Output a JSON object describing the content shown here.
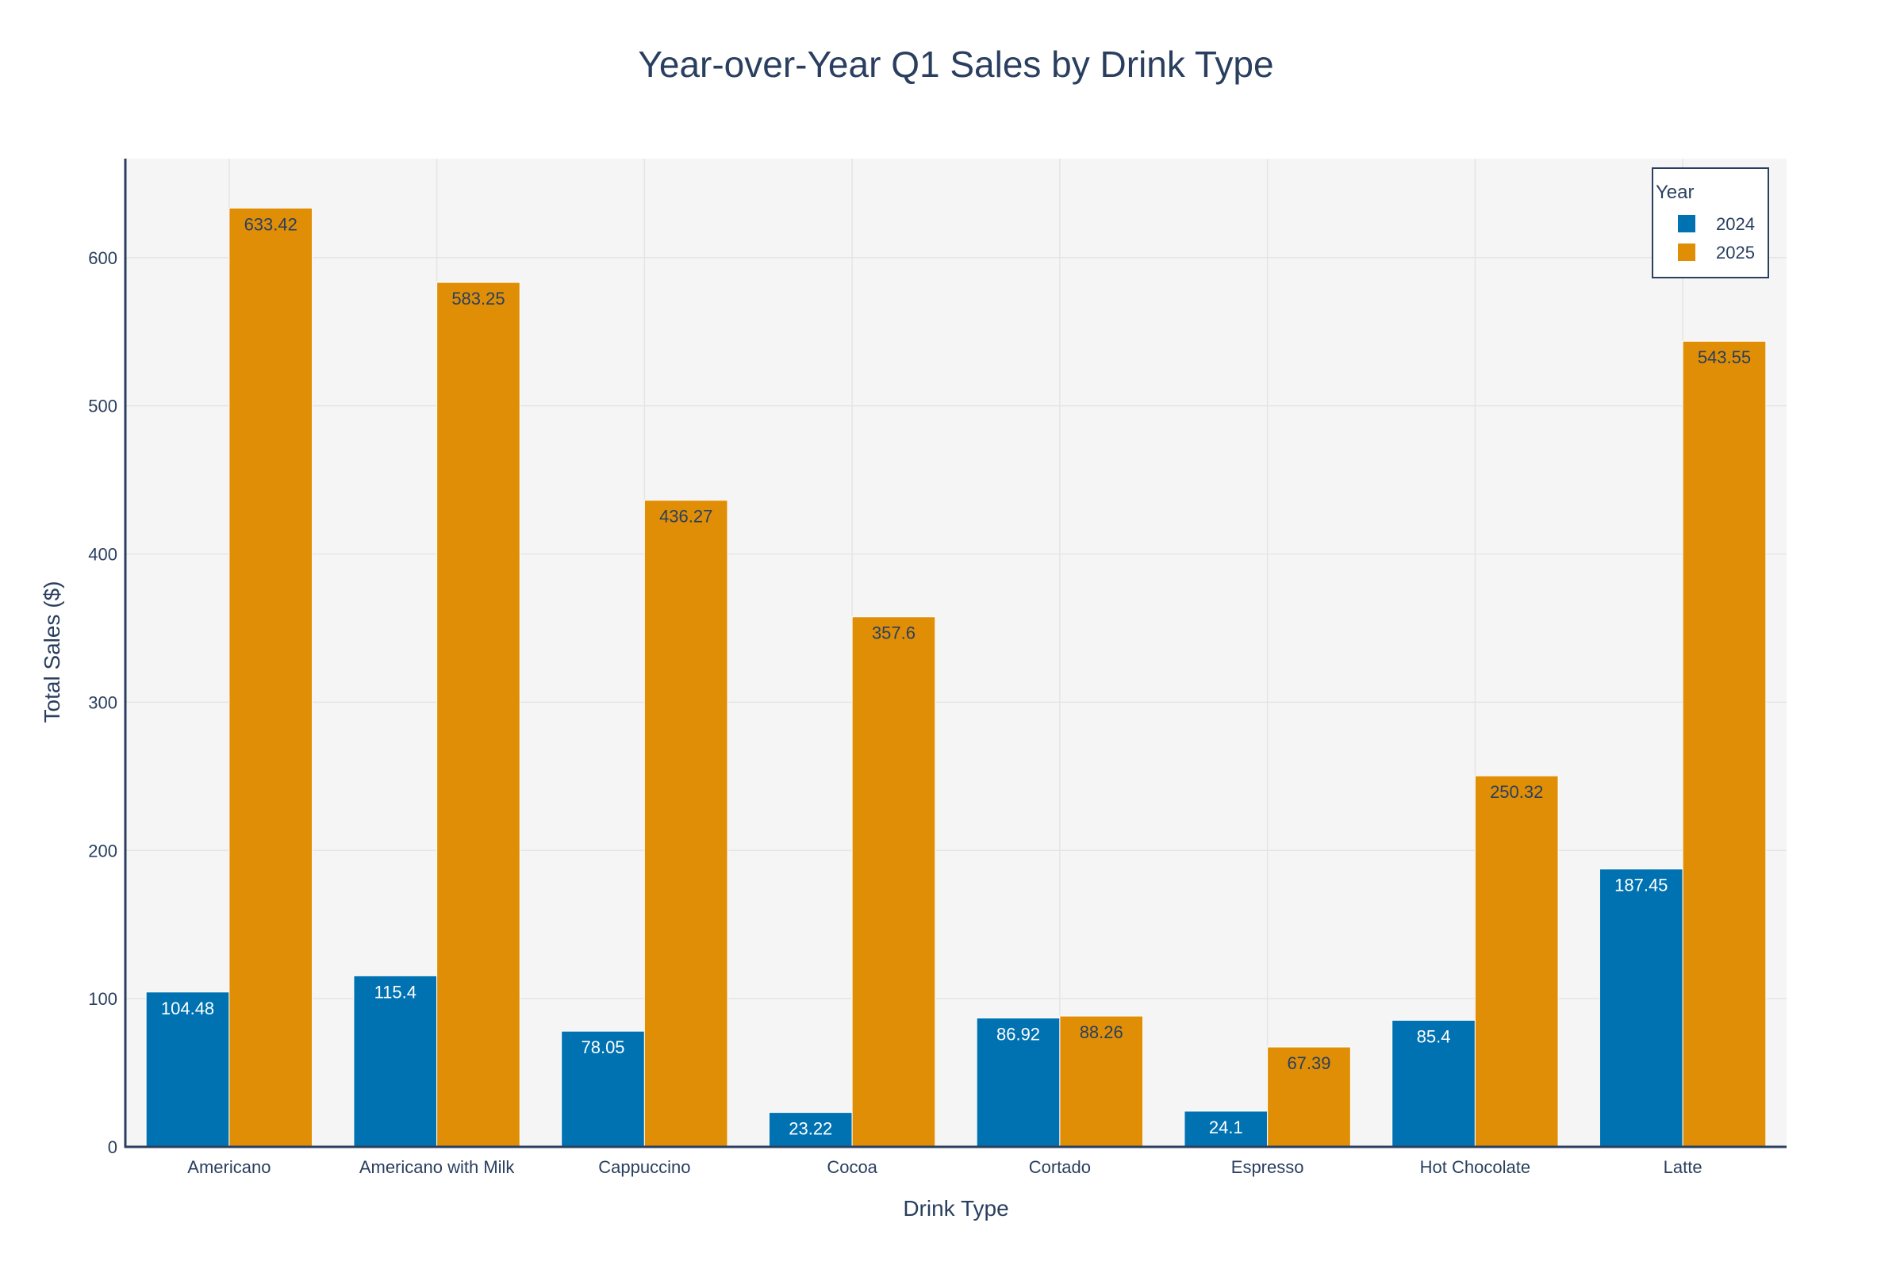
{
  "chart_data": {
    "type": "bar",
    "title": "Year-over-Year Q1 Sales by Drink Type",
    "xlabel": "Drink Type",
    "ylabel": "Total Sales ($)",
    "categories": [
      "Americano",
      "Americano with Milk",
      "Cappuccino",
      "Cocoa",
      "Cortado",
      "Espresso",
      "Hot Chocolate",
      "Latte"
    ],
    "series": [
      {
        "name": "2024",
        "color": "#0072b2",
        "label_color": "#ffffff",
        "values": [
          104.48,
          115.4,
          78.05,
          23.22,
          86.92,
          24.1,
          85.4,
          187.45
        ],
        "labels": [
          "104.48",
          "115.4",
          "78.05",
          "23.22",
          "86.92",
          "24.1",
          "85.4",
          "187.45"
        ]
      },
      {
        "name": "2025",
        "color": "#e08e06",
        "label_color": "#2a3f5f",
        "values": [
          633.42,
          583.25,
          436.27,
          357.6,
          88.26,
          67.39,
          250.32,
          543.55
        ],
        "labels": [
          "633.42",
          "583.25",
          "436.27",
          "357.6",
          "88.26",
          "67.39",
          "250.32",
          "543.55"
        ]
      }
    ],
    "ylim": [
      0,
      666.76
    ],
    "yticks": [
      0,
      100,
      200,
      300,
      400,
      500,
      600
    ],
    "ytick_labels": [
      "0",
      "100",
      "200",
      "300",
      "400",
      "500",
      "600"
    ],
    "grid": true,
    "legend": {
      "title": "Year",
      "placement": "top-right"
    },
    "colors": {
      "plot_background": "#f5f5f5",
      "grid": "#e5e5e5",
      "axis_line": "#2a3f5f",
      "text": "#2a3f5f"
    }
  }
}
